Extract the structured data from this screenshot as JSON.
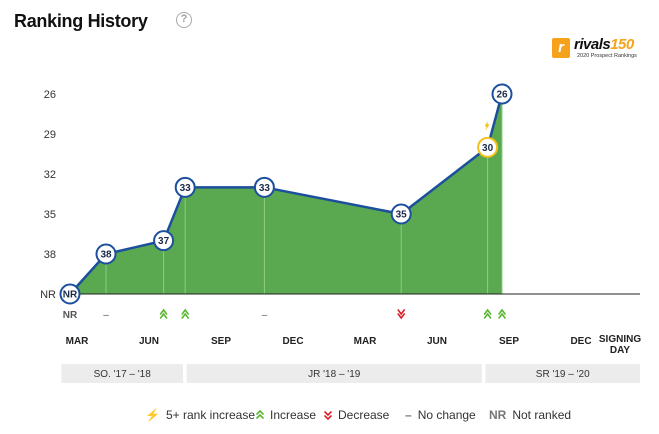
{
  "header": {
    "title": "Ranking History",
    "help_icon": "?"
  },
  "brand": {
    "logo_letter": "r",
    "name": "rivals",
    "number": "150",
    "subtitle": "2020 Prospect Rankings"
  },
  "colors": {
    "line": "#1c4f9c",
    "fill": "#5aa84f",
    "increase": "#58b730",
    "decrease": "#d7202a",
    "big_increase": "#f4c01a"
  },
  "chart_data": {
    "type": "area",
    "y_axis": {
      "ticks": [
        "26",
        "29",
        "32",
        "35",
        "38",
        "NR"
      ],
      "tick_values": [
        26,
        29,
        32,
        35,
        38,
        41
      ],
      "reversed": true
    },
    "x_ticks": [
      "MAR",
      "JUN",
      "SEP",
      "DEC",
      "MAR",
      "JUN",
      "SEP",
      "DEC",
      "SIGNING DAY"
    ],
    "points": [
      {
        "label": "NR",
        "rank": 41,
        "t": 0.0,
        "highlight": false
      },
      {
        "label": "38",
        "rank": 38,
        "t": 0.5,
        "highlight": false
      },
      {
        "label": "37",
        "rank": 37,
        "t": 1.3,
        "highlight": false
      },
      {
        "label": "33",
        "rank": 33,
        "t": 1.6,
        "highlight": false
      },
      {
        "label": "33",
        "rank": 33,
        "t": 2.7,
        "highlight": false
      },
      {
        "label": "35",
        "rank": 35,
        "t": 4.6,
        "highlight": false
      },
      {
        "label": "30",
        "rank": 30,
        "t": 5.8,
        "highlight": true
      },
      {
        "label": "26",
        "rank": 26,
        "t": 6.0,
        "highlight": false
      }
    ],
    "changes": [
      {
        "t": 0.0,
        "symbol": "NR",
        "kind": "nr"
      },
      {
        "t": 0.5,
        "symbol": "–",
        "kind": "none"
      },
      {
        "t": 1.3,
        "symbol": "up",
        "kind": "increase"
      },
      {
        "t": 1.6,
        "symbol": "up",
        "kind": "increase"
      },
      {
        "t": 2.7,
        "symbol": "–",
        "kind": "none"
      },
      {
        "t": 4.6,
        "symbol": "down",
        "kind": "decrease"
      },
      {
        "t": 5.8,
        "symbol": "up",
        "kind": "increase"
      },
      {
        "t": 6.0,
        "symbol": "up",
        "kind": "increase"
      }
    ],
    "big_increase_marker_t": 5.8,
    "seasons": [
      {
        "label": "SO. '17 – '18",
        "t0": -0.12,
        "t1": 1.57
      },
      {
        "label": "JR '18 – '19",
        "t0": 1.62,
        "t1": 5.72
      },
      {
        "label": "SR '19 – '20",
        "t0": 5.77,
        "t1": 8.8
      }
    ]
  },
  "legend": {
    "items": [
      {
        "symbol": "⚡",
        "label": "5+ rank increase",
        "kind": "big"
      },
      {
        "symbol": "up",
        "label": "Increase",
        "kind": "increase"
      },
      {
        "symbol": "down",
        "label": "Decrease",
        "kind": "decrease"
      },
      {
        "symbol": "–",
        "label": "No change",
        "kind": "none"
      },
      {
        "symbol": "NR",
        "label": "Not ranked",
        "kind": "nr"
      }
    ]
  }
}
